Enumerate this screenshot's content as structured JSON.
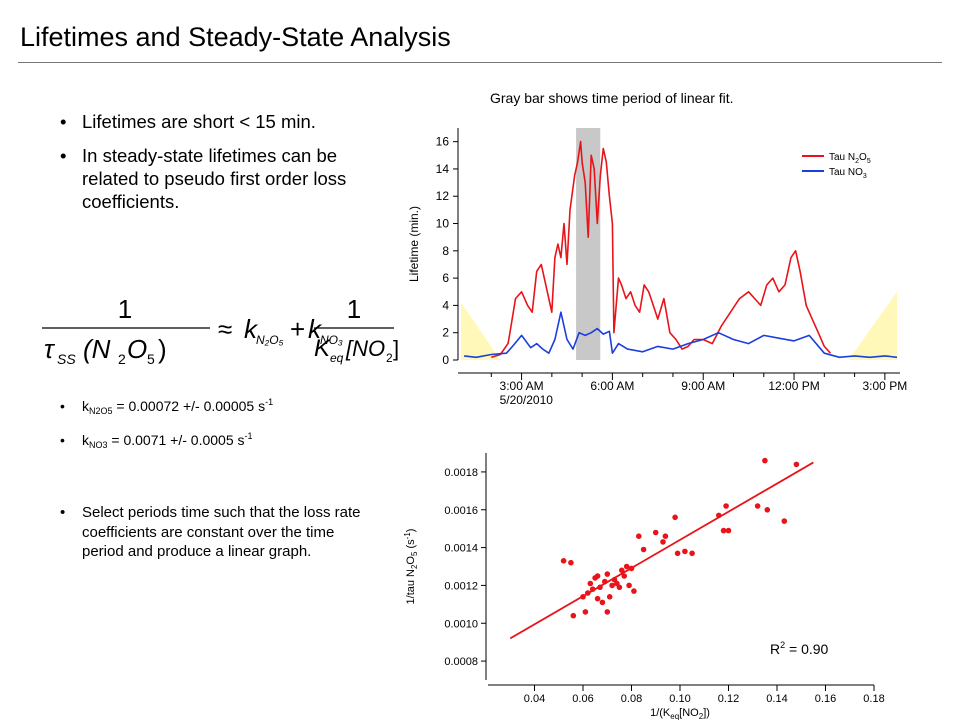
{
  "slide": {
    "title": "Lifetimes and Steady-State Analysis",
    "caption": "Gray bar shows time period of  linear fit.",
    "bullets": [
      "Lifetimes are short < 15 min.",
      "In steady-state lifetimes can be related to pseudo first order loss coefficients."
    ],
    "kN2O5": {
      "sym": "k",
      "sub": "N2O5",
      "text": " = 0.00072 +/- 0.00005 s",
      "sup": "-1"
    },
    "kNO3": {
      "sym": "k",
      "sub": "NO3",
      "text": " = 0.0071 +/- 0.0005 s",
      "sup": "-1"
    },
    "select_bullet": "Select periods time such that the loss rate coefficients are constant over the time period and produce a linear graph.",
    "equation": {
      "lhs_num": "1",
      "tau": "τ",
      "ss": "SS",
      "n2o5": "(N",
      "n2o5_sub": "2",
      "n2o5_o": "O",
      "n2o5_sub2": "5",
      "close": ")",
      "approx": "≈",
      "k": "k",
      "kn2o5_sub": "N₂O₅",
      "plus": "+",
      "kno3_sub": "NO₃",
      "rhs_num": "1",
      "K": "K",
      "eq": "eq",
      "no2": "[NO",
      "no2_sub": "2",
      "no2_close": "]"
    }
  },
  "chart_data": [
    {
      "type": "line",
      "title": "",
      "ylabel": "Lifetime (min.)",
      "xlabel": "",
      "x_tick_labels": [
        "3:00 AM",
        "6:00 AM",
        "9:00 AM",
        "12:00 PM",
        "3:00 PM"
      ],
      "x_tick_hours": [
        3,
        6,
        9,
        12,
        15
      ],
      "x_date_label": "5/20/2010",
      "xlim_hours": [
        0.9,
        15.5
      ],
      "ylim": [
        0,
        17
      ],
      "y_ticks": [
        0,
        2,
        4,
        6,
        8,
        10,
        12,
        14,
        16
      ],
      "fit_window_hours": [
        4.8,
        5.6
      ],
      "fit_window_color": "#c8c8c8",
      "night_shade_color": "#fff8b8",
      "night_shade_left": [
        [
          1.0,
          0
        ],
        [
          1.0,
          4.2
        ],
        [
          2.3,
          0
        ]
      ],
      "night_shade_right": [
        [
          13.8,
          0
        ],
        [
          15.4,
          5.0
        ],
        [
          15.4,
          0
        ]
      ],
      "legend": "top-right",
      "series": [
        {
          "name": "Tau N2O5",
          "legend_label": {
            "a": "Tau N",
            "s1": "2",
            "b": "O",
            "s2": "5"
          },
          "color": "#e8141a",
          "x": [
            2.0,
            2.3,
            2.55,
            2.6,
            2.8,
            3.0,
            3.2,
            3.35,
            3.5,
            3.65,
            3.8,
            4.0,
            4.1,
            4.2,
            4.3,
            4.4,
            4.5,
            4.6,
            4.75,
            4.85,
            4.95,
            5.0,
            5.1,
            5.2,
            5.3,
            5.4,
            5.5,
            5.6,
            5.7,
            5.8,
            5.9,
            6.0,
            6.05,
            6.2,
            6.3,
            6.45,
            6.6,
            6.75,
            6.9,
            7.05,
            7.2,
            7.35,
            7.5,
            7.7,
            7.9,
            8.1,
            8.3,
            8.5,
            8.7,
            9.0,
            9.3,
            9.6,
            9.9,
            10.2,
            10.5,
            10.7,
            10.9,
            11.1,
            11.3,
            11.5,
            11.7,
            11.9,
            12.05,
            12.2,
            12.4,
            12.6,
            12.8,
            13.0,
            13.2
          ],
          "values": [
            0.2,
            0.4,
            1.2,
            1.8,
            4.5,
            5.0,
            4.0,
            3.5,
            6.5,
            7.0,
            5.5,
            3.5,
            7.5,
            8.5,
            7.5,
            10.0,
            7.0,
            11.0,
            13.5,
            14.5,
            16.0,
            14.5,
            13.0,
            9.0,
            15.0,
            14.0,
            10.0,
            13.5,
            15.5,
            14.5,
            12.0,
            10.0,
            2.0,
            6.0,
            5.5,
            4.5,
            5.0,
            4.0,
            3.5,
            5.5,
            5.0,
            4.0,
            3.0,
            4.5,
            2.0,
            1.5,
            0.8,
            1.0,
            1.5,
            1.5,
            1.2,
            2.5,
            3.5,
            4.5,
            5.0,
            4.5,
            4.0,
            5.5,
            6.0,
            5.0,
            5.5,
            7.5,
            8.0,
            6.5,
            4.0,
            3.0,
            2.0,
            1.0,
            0.5
          ]
        },
        {
          "name": "Tau NO3",
          "legend_label": {
            "a": "Tau NO",
            "s1": "3",
            "b": "",
            "s2": ""
          },
          "color": "#1a3fdc",
          "x": [
            1.1,
            1.5,
            2.0,
            2.5,
            2.7,
            3.0,
            3.3,
            3.5,
            3.7,
            3.9,
            4.1,
            4.3,
            4.5,
            4.7,
            4.9,
            5.1,
            5.3,
            5.5,
            5.7,
            5.9,
            6.0,
            6.2,
            6.5,
            7.0,
            7.5,
            8.0,
            8.5,
            9.0,
            9.5,
            10.0,
            10.5,
            11.0,
            11.5,
            12.0,
            12.5,
            13.0,
            13.5,
            14.0,
            14.5,
            15.0,
            15.4
          ],
          "values": [
            0.3,
            0.2,
            0.4,
            0.5,
            1.0,
            1.8,
            0.9,
            1.2,
            0.8,
            0.5,
            1.5,
            3.5,
            1.5,
            0.8,
            2.0,
            1.8,
            2.0,
            2.3,
            1.9,
            2.1,
            0.5,
            1.2,
            0.8,
            0.6,
            1.0,
            0.8,
            1.2,
            1.5,
            2.0,
            1.5,
            1.2,
            1.8,
            1.6,
            1.4,
            1.8,
            0.5,
            0.2,
            0.3,
            0.2,
            0.3,
            0.2
          ]
        }
      ]
    },
    {
      "type": "scatter",
      "title": "",
      "xlabel": {
        "a": "1/(K",
        "s": "eq",
        "b": "[NO",
        "s2": "2",
        "c": "])"
      },
      "ylabel": {
        "a": "1/tau N",
        "s1": "2",
        "b": "O",
        "s2": "5",
        "c": " (s",
        "sup": "-1",
        "d": ")"
      },
      "xlim": [
        0.02,
        0.18
      ],
      "ylim": [
        0.0007,
        0.0019
      ],
      "x_ticks": [
        0.04,
        0.06,
        0.08,
        0.1,
        0.12,
        0.14,
        0.16,
        0.18
      ],
      "x_tick_labels": [
        "0.04",
        "0.06",
        "0.08",
        "0.10",
        "0.12",
        "0.14",
        "0.16",
        "0.18"
      ],
      "y_ticks": [
        0.0008,
        0.001,
        0.0012,
        0.0014,
        0.0016,
        0.0018
      ],
      "y_tick_labels": [
        "0.0008",
        "0.0010",
        "0.0012",
        "0.0014",
        "0.0016",
        "0.0018"
      ],
      "point_color": "#e8141a",
      "fit_line": {
        "x": [
          0.03,
          0.155
        ],
        "y": [
          0.00092,
          0.00185
        ]
      },
      "annotation": {
        "a": "R",
        "sup": "2",
        "b": " = 0.90"
      },
      "points": [
        [
          0.052,
          0.00133
        ],
        [
          0.055,
          0.00132
        ],
        [
          0.056,
          0.00104
        ],
        [
          0.06,
          0.00114
        ],
        [
          0.061,
          0.00106
        ],
        [
          0.062,
          0.00116
        ],
        [
          0.063,
          0.00121
        ],
        [
          0.064,
          0.00118
        ],
        [
          0.065,
          0.00124
        ],
        [
          0.066,
          0.00113
        ],
        [
          0.066,
          0.00125
        ],
        [
          0.067,
          0.00119
        ],
        [
          0.068,
          0.00111
        ],
        [
          0.069,
          0.00122
        ],
        [
          0.07,
          0.00126
        ],
        [
          0.07,
          0.00106
        ],
        [
          0.071,
          0.00114
        ],
        [
          0.072,
          0.0012
        ],
        [
          0.073,
          0.00123
        ],
        [
          0.074,
          0.00121
        ],
        [
          0.075,
          0.00119
        ],
        [
          0.076,
          0.00128
        ],
        [
          0.077,
          0.00125
        ],
        [
          0.078,
          0.0013
        ],
        [
          0.079,
          0.0012
        ],
        [
          0.08,
          0.00129
        ],
        [
          0.081,
          0.00117
        ],
        [
          0.083,
          0.00146
        ],
        [
          0.085,
          0.00139
        ],
        [
          0.09,
          0.00148
        ],
        [
          0.093,
          0.00143
        ],
        [
          0.094,
          0.00146
        ],
        [
          0.098,
          0.00156
        ],
        [
          0.099,
          0.00137
        ],
        [
          0.102,
          0.00138
        ],
        [
          0.105,
          0.00137
        ],
        [
          0.116,
          0.00157
        ],
        [
          0.118,
          0.00149
        ],
        [
          0.119,
          0.00162
        ],
        [
          0.12,
          0.00149
        ],
        [
          0.132,
          0.00162
        ],
        [
          0.135,
          0.00186
        ],
        [
          0.136,
          0.0016
        ],
        [
          0.143,
          0.00154
        ],
        [
          0.148,
          0.00184
        ]
      ]
    }
  ]
}
